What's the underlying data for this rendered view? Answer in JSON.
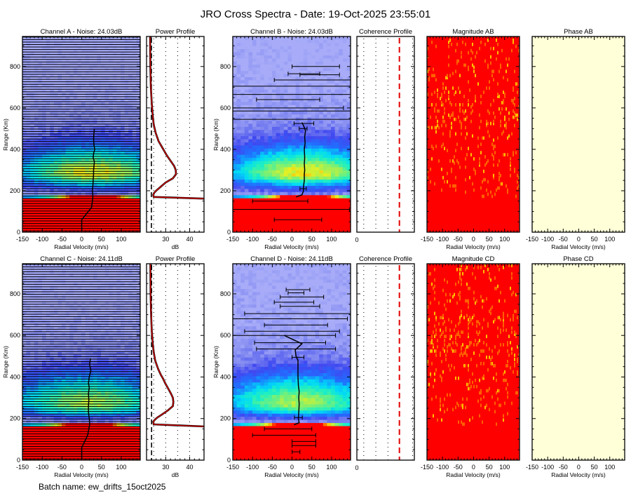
{
  "title": "JRO Cross Spectra - Date: 19-Oct-2025 23:55:01",
  "batch_name": "Batch name: ew_drifts_15oct2025",
  "colors": {
    "noise_floor": "#a8acf8",
    "saturated": "#ff0000",
    "power_line": "#e00000",
    "coherence_threshold": "#e00000",
    "magnitude_bg": "#ff0000",
    "phase_bg": "#ffffd8"
  },
  "chart_data": {
    "type": "heatmap",
    "rows": [
      {
        "spectra_left": {
          "title": "Channel A - Noise: 24.03dB",
          "noise_db": 24.03,
          "xlabel": "Radial Velocity (m/s)",
          "ylabel": "Range (Km)",
          "xlim": [
            -150,
            148
          ],
          "ylim": [
            0,
            945
          ],
          "xticks": [
            -150,
            -100,
            -50,
            0,
            50,
            100
          ],
          "yticks": [
            0,
            200,
            400,
            600,
            800
          ],
          "full_width_error_bars": true,
          "velocity_profile": [
            [
              5,
              0
            ],
            [
              60,
              0
            ],
            [
              120,
              25
            ],
            [
              165,
              28
            ],
            [
              180,
              28
            ],
            [
              200,
              27
            ],
            [
              220,
              28
            ],
            [
              250,
              29
            ],
            [
              280,
              30
            ],
            [
              300,
              30
            ],
            [
              320,
              31
            ],
            [
              340,
              32
            ],
            [
              360,
              29
            ],
            [
              380,
              30
            ],
            [
              400,
              33
            ],
            [
              420,
              31
            ],
            [
              450,
              30
            ],
            [
              480,
              31
            ],
            [
              500,
              32
            ]
          ],
          "error_bars": []
        },
        "power_profile": {
          "title": "Power Profile",
          "xlabel": "dB",
          "xlim": [
            22,
            46
          ],
          "xticks": [
            30,
            40
          ],
          "noise_db": 24.03,
          "values": [
            [
              0,
              60
            ],
            [
              158,
              60
            ],
            [
              162,
              46
            ],
            [
              170,
              25
            ],
            [
              180,
              24.8
            ],
            [
              190,
              25.2
            ],
            [
              200,
              26
            ],
            [
              215,
              27.5
            ],
            [
              240,
              30
            ],
            [
              260,
              33
            ],
            [
              280,
              34.3
            ],
            [
              300,
              34.2
            ],
            [
              320,
              33.5
            ],
            [
              345,
              32
            ],
            [
              370,
              30.5
            ],
            [
              390,
              29.5
            ],
            [
              410,
              28.5
            ],
            [
              440,
              27
            ],
            [
              480,
              25.8
            ],
            [
              520,
              25
            ],
            [
              560,
              24.6
            ],
            [
              620,
              24.2
            ],
            [
              700,
              23.8
            ],
            [
              800,
              23.6
            ],
            [
              945,
              23.5
            ]
          ]
        },
        "spectra_right": {
          "title": "Channel B - Noise: 24.03dB",
          "noise_db": 24.03,
          "xlabel": "Radial Velocity (m/s)",
          "ylabel": "Range (Km)",
          "xlim": [
            -150,
            148
          ],
          "ylim": [
            0,
            945
          ],
          "xticks": [
            -150,
            -100,
            -50,
            0,
            50,
            100
          ],
          "yticks": [
            0,
            200,
            400,
            600,
            800
          ],
          "full_width_error_bars": false,
          "velocity_profile": [
            [
              170,
              10
            ],
            [
              180,
              25
            ],
            [
              200,
              29
            ],
            [
              220,
              29
            ],
            [
              250,
              31
            ],
            [
              280,
              31
            ],
            [
              300,
              32
            ],
            [
              330,
              31
            ],
            [
              360,
              32
            ],
            [
              400,
              31
            ],
            [
              430,
              33
            ],
            [
              460,
              32
            ],
            [
              490,
              34
            ],
            [
              510,
              30
            ],
            [
              530,
              25
            ]
          ],
          "error_bars": [
            [
              800,
              60,
              60
            ],
            [
              765,
              30,
              40
            ],
            [
              760,
              70,
              50
            ],
            [
              735,
              55,
              100
            ],
            [
              705,
              30,
              200
            ],
            [
              665,
              40,
              200
            ],
            [
              640,
              -10,
              80
            ],
            [
              600,
              -20,
              150
            ],
            [
              585,
              40,
              200
            ],
            [
              545,
              30,
              180
            ],
            [
              525,
              30,
              25
            ],
            [
              500,
              28,
              10
            ],
            [
              210,
              28,
              8
            ],
            [
              150,
              -30,
              70
            ],
            [
              110,
              -25,
              170
            ],
            [
              60,
              15,
              60
            ]
          ]
        },
        "coherence_profile": {
          "title": "Coherence Profile",
          "xticks_labels": [
            "0"
          ]
        },
        "magnitude": {
          "title": "Magnitude AB",
          "xlabel": "Radial Velocity (m/s)",
          "xticks": [
            -150,
            -100,
            -50,
            0,
            50,
            100
          ]
        },
        "phase": {
          "title": "Phase AB",
          "xlabel": "Radial Velocity (m/s)",
          "xticks": [
            -150,
            -100,
            -50,
            0,
            50,
            100
          ]
        }
      },
      {
        "spectra_left": {
          "title": "Channel C - Noise: 24.11dB",
          "noise_db": 24.11,
          "xlabel": "Radial Velocity (m/s)",
          "ylabel": "Range (Km)",
          "xlim": [
            -150,
            148
          ],
          "ylim": [
            0,
            945
          ],
          "xticks": [
            -150,
            -100,
            -50,
            0,
            50,
            100
          ],
          "yticks": [
            0,
            200,
            400,
            600,
            800
          ],
          "full_width_error_bars": true,
          "velocity_profile": [
            [
              5,
              0
            ],
            [
              60,
              0
            ],
            [
              120,
              15
            ],
            [
              170,
              20
            ],
            [
              180,
              20
            ],
            [
              200,
              19
            ],
            [
              230,
              17
            ],
            [
              260,
              17
            ],
            [
              290,
              18
            ],
            [
              320,
              17
            ],
            [
              350,
              19
            ],
            [
              370,
              17
            ],
            [
              400,
              19
            ],
            [
              430,
              23
            ],
            [
              460,
              20
            ],
            [
              490,
              22
            ]
          ],
          "error_bars": []
        },
        "power_profile": {
          "title": "Power Profile",
          "xlabel": "dB",
          "xlim": [
            22,
            46
          ],
          "xticks": [
            30,
            40
          ],
          "noise_db": 24.11,
          "values": [
            [
              0,
              60
            ],
            [
              158,
              60
            ],
            [
              162,
              46
            ],
            [
              172,
              25
            ],
            [
              185,
              24.8
            ],
            [
              195,
              25.5
            ],
            [
              205,
              26.5
            ],
            [
              220,
              28.5
            ],
            [
              240,
              31
            ],
            [
              260,
              33
            ],
            [
              280,
              33.2
            ],
            [
              300,
              33
            ],
            [
              320,
              32.2
            ],
            [
              345,
              31
            ],
            [
              370,
              29.8
            ],
            [
              390,
              29
            ],
            [
              410,
              28
            ],
            [
              440,
              26.8
            ],
            [
              480,
              25.6
            ],
            [
              520,
              25
            ],
            [
              560,
              24.6
            ],
            [
              620,
              24.2
            ],
            [
              700,
              23.9
            ],
            [
              800,
              23.7
            ],
            [
              945,
              23.6
            ]
          ]
        },
        "spectra_right": {
          "title": "Channel D - Noise: 24.11dB",
          "noise_db": 24.11,
          "xlabel": "Radial Velocity (m/s)",
          "ylabel": "Range (Km)",
          "xlim": [
            -150,
            148
          ],
          "ylim": [
            0,
            945
          ],
          "xticks": [
            -150,
            -100,
            -50,
            0,
            50,
            100
          ],
          "yticks": [
            0,
            200,
            400,
            600,
            800
          ],
          "full_width_error_bars": false,
          "velocity_profile": [
            [
              170,
              5
            ],
            [
              180,
              18
            ],
            [
              200,
              16
            ],
            [
              230,
              17
            ],
            [
              270,
              18
            ],
            [
              300,
              17
            ],
            [
              330,
              18
            ],
            [
              360,
              16
            ],
            [
              400,
              15
            ],
            [
              450,
              15
            ],
            [
              480,
              15
            ],
            [
              500,
              10
            ],
            [
              530,
              8
            ],
            [
              560,
              25
            ],
            [
              600,
              -20
            ]
          ],
          "error_bars": [
            [
              820,
              15,
              30
            ],
            [
              805,
              10,
              20
            ],
            [
              785,
              25,
              55
            ],
            [
              760,
              5,
              50
            ],
            [
              740,
              20,
              50
            ],
            [
              705,
              30,
              150
            ],
            [
              680,
              -10,
              150
            ],
            [
              650,
              10,
              80
            ],
            [
              620,
              0,
              120
            ],
            [
              600,
              -20,
              130
            ],
            [
              565,
              -5,
              90
            ],
            [
              535,
              10,
              100
            ],
            [
              495,
              15,
              15
            ],
            [
              205,
              16,
              10
            ],
            [
              150,
              -10,
              60
            ],
            [
              120,
              -20,
              80
            ],
            [
              90,
              30,
              30
            ],
            [
              70,
              30,
              30
            ],
            [
              40,
              10,
              10
            ]
          ]
        },
        "coherence_profile": {
          "title": "Coherence Profile",
          "xticks_labels": [
            "0"
          ]
        },
        "magnitude": {
          "title": "Magnitude CD",
          "xlabel": "Radial Velocity (m/s)",
          "xticks": [
            -150,
            -100,
            -50,
            0,
            50,
            100
          ]
        },
        "phase": {
          "title": "Phase CD",
          "xlabel": "Radial Velocity (m/s)",
          "xticks": [
            -150,
            -100,
            -50,
            0,
            50,
            100
          ]
        }
      }
    ]
  }
}
